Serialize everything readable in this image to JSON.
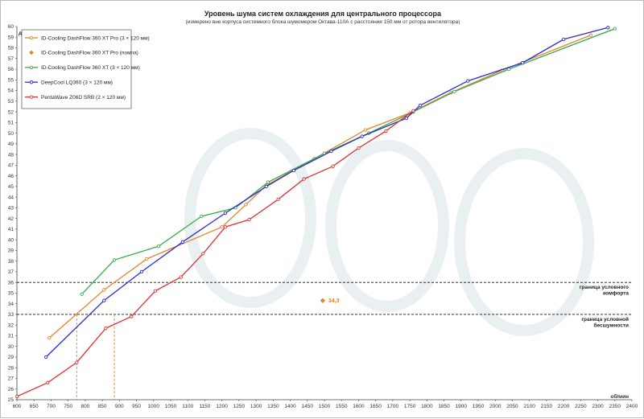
{
  "chart_data": {
    "type": "line",
    "title": "Уровень шума систем охлаждения для центрального процессора",
    "subtitle": "(измерено вне корпуса системного блока шумомером Октава-110А с расстояния 150 мм от ротора вентилятора)",
    "xlabel": "об/мин",
    "ylabel": "дБА",
    "xlim": [
      600,
      2400
    ],
    "ylim": [
      25,
      60
    ],
    "x_ticks": [
      600,
      650,
      700,
      750,
      800,
      850,
      900,
      950,
      1000,
      1050,
      1100,
      1150,
      1200,
      1250,
      1300,
      1350,
      1400,
      1450,
      1500,
      1550,
      1600,
      1650,
      1700,
      1750,
      1800,
      1850,
      1900,
      1950,
      2000,
      2050,
      2100,
      2150,
      2200,
      2250,
      2300,
      2350,
      2400
    ],
    "y_ticks": [
      25,
      26,
      27,
      28,
      29,
      30,
      31,
      32,
      33,
      34,
      35,
      36,
      37,
      38,
      39,
      40,
      41,
      42,
      43,
      44,
      45,
      46,
      47,
      48,
      49,
      50,
      51,
      52,
      53,
      54,
      55,
      56,
      57,
      58,
      59,
      60
    ],
    "legend_position": "top-left",
    "grid": false,
    "series": [
      {
        "name": "ID-Cooling DashFlow 360 XT Pro (3 × 120 мм)",
        "color": "#e8832a",
        "marker": "circle",
        "points": [
          [
            695,
            30.8
          ],
          [
            855,
            35.3
          ],
          [
            980,
            38.2
          ],
          [
            1200,
            41.2
          ],
          [
            1270,
            43.3
          ],
          [
            1330,
            45.1
          ],
          [
            1470,
            47.6
          ],
          [
            1620,
            50.3
          ],
          [
            1750,
            51.9
          ],
          [
            1870,
            53.8
          ],
          [
            2020,
            55.9
          ],
          [
            2280,
            59.2
          ]
        ]
      },
      {
        "name": "ID-Cooling DashFlow 360 XT Pro (помпа)",
        "color": "#e8832a",
        "marker": "diamond",
        "points": [
          [
            1495,
            34.3
          ]
        ]
      },
      {
        "name": "ID-Cooling DashFlow 360 XT (3 × 120 мм)",
        "color": "#3aaa4a",
        "marker": "circle",
        "points": [
          [
            790,
            34.9
          ],
          [
            885,
            38.1
          ],
          [
            1015,
            39.4
          ],
          [
            1140,
            42.2
          ],
          [
            1240,
            43.0
          ],
          [
            1335,
            45.4
          ],
          [
            1500,
            48.1
          ],
          [
            1630,
            50.0
          ],
          [
            1760,
            52.0
          ],
          [
            1880,
            53.9
          ],
          [
            2040,
            56.0
          ],
          [
            2350,
            59.8
          ]
        ]
      },
      {
        "name": "DeepCool LQ360 (3 × 120 мм)",
        "color": "#2a2ad8",
        "marker": "circle",
        "points": [
          [
            685,
            29.0
          ],
          [
            855,
            34.3
          ],
          [
            965,
            37.0
          ],
          [
            1085,
            39.8
          ],
          [
            1210,
            42.5
          ],
          [
            1330,
            45.0
          ],
          [
            1410,
            46.5
          ],
          [
            1520,
            48.3
          ],
          [
            1610,
            49.7
          ],
          [
            1740,
            51.4
          ],
          [
            1780,
            52.6
          ],
          [
            1920,
            54.9
          ],
          [
            2080,
            56.6
          ],
          [
            2200,
            58.8
          ],
          [
            2330,
            59.9
          ]
        ]
      },
      {
        "name": "PentaWave Z06D SRB (2 × 120 мм)",
        "color": "#e53030",
        "marker": "circle",
        "points": [
          [
            600,
            25.3
          ],
          [
            690,
            26.6
          ],
          [
            775,
            28.5
          ],
          [
            860,
            31.7
          ],
          [
            935,
            32.8
          ],
          [
            1005,
            35.2
          ],
          [
            1080,
            36.5
          ],
          [
            1145,
            38.7
          ],
          [
            1210,
            41.2
          ],
          [
            1280,
            41.9
          ],
          [
            1365,
            43.8
          ],
          [
            1440,
            45.7
          ],
          [
            1525,
            46.9
          ],
          [
            1600,
            48.6
          ],
          [
            1680,
            50.2
          ],
          [
            1760,
            52.1
          ]
        ]
      }
    ],
    "thresholds": [
      {
        "y": 36,
        "label_lines": [
          "граница  условного",
          "комфорта"
        ]
      },
      {
        "y": 33,
        "label_lines": [
          "граница  условной",
          "бесшумности"
        ]
      }
    ],
    "crossings": [
      775,
      885
    ],
    "annotation": {
      "text": "34,3",
      "x": 1495,
      "y": 34.3,
      "color": "#e8832a"
    }
  }
}
